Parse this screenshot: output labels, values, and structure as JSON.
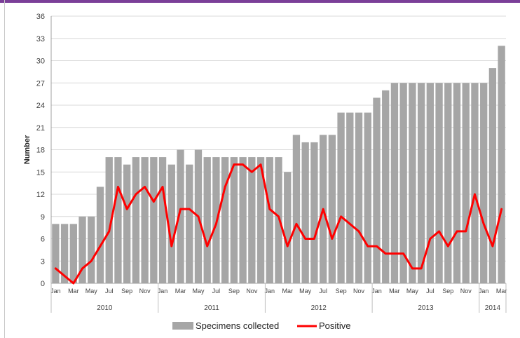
{
  "chart_data": {
    "type": "bar",
    "title": "",
    "ylabel": "Number",
    "xlabel": "",
    "ylim": [
      0,
      36
    ],
    "yticks": [
      "0",
      "3",
      "6",
      "9",
      "12",
      "15",
      "18",
      "21",
      "24",
      "27",
      "30",
      "33",
      "36"
    ],
    "grid": true,
    "legend_position": "bottom",
    "month_labels": [
      "Jan",
      "",
      "Mar",
      "",
      "May",
      "",
      "Jul",
      "",
      "Sep",
      "",
      "Nov",
      "",
      "Jan",
      "",
      "Mar",
      "",
      "May",
      "",
      "Jul",
      "",
      "Sep",
      "",
      "Nov",
      "",
      "Jan",
      "",
      "Mar",
      "",
      "May",
      "",
      "Jul",
      "",
      "Sep",
      "",
      "Nov",
      "",
      "Jan",
      "",
      "Mar",
      "",
      "May",
      "",
      "Jul",
      "",
      "Sep",
      "",
      "Nov",
      "",
      "Jan",
      "",
      "Mar"
    ],
    "years": [
      {
        "label": "2010",
        "months": 12
      },
      {
        "label": "2011",
        "months": 12
      },
      {
        "label": "2012",
        "months": 12
      },
      {
        "label": "2013",
        "months": 12
      },
      {
        "label": "2014",
        "months": 3
      }
    ],
    "series": [
      {
        "name": "Specimens collected",
        "type": "bar",
        "color": "#a6a6a6",
        "values": [
          8,
          8,
          8,
          9,
          9,
          13,
          17,
          17,
          16,
          17,
          17,
          17,
          17,
          16,
          18,
          16,
          18,
          17,
          17,
          17,
          17,
          17,
          17,
          17,
          17,
          17,
          15,
          20,
          19,
          19,
          20,
          20,
          23,
          23,
          23,
          23,
          25,
          26,
          27,
          27,
          27,
          27,
          27,
          27,
          27,
          27,
          27,
          27,
          27,
          29,
          32
        ]
      },
      {
        "name": "Positive",
        "type": "line",
        "color": "#ff0000",
        "values": [
          2,
          1,
          0,
          2,
          3,
          5,
          7,
          13,
          10,
          12,
          13,
          11,
          13,
          5,
          10,
          10,
          9,
          5,
          8,
          13,
          16,
          16,
          15,
          16,
          10,
          9,
          5,
          8,
          6,
          6,
          10,
          6,
          9,
          8,
          7,
          5,
          5,
          4,
          4,
          4,
          2,
          2,
          6,
          7,
          5,
          7,
          7,
          12,
          8,
          5,
          10
        ]
      }
    ]
  }
}
